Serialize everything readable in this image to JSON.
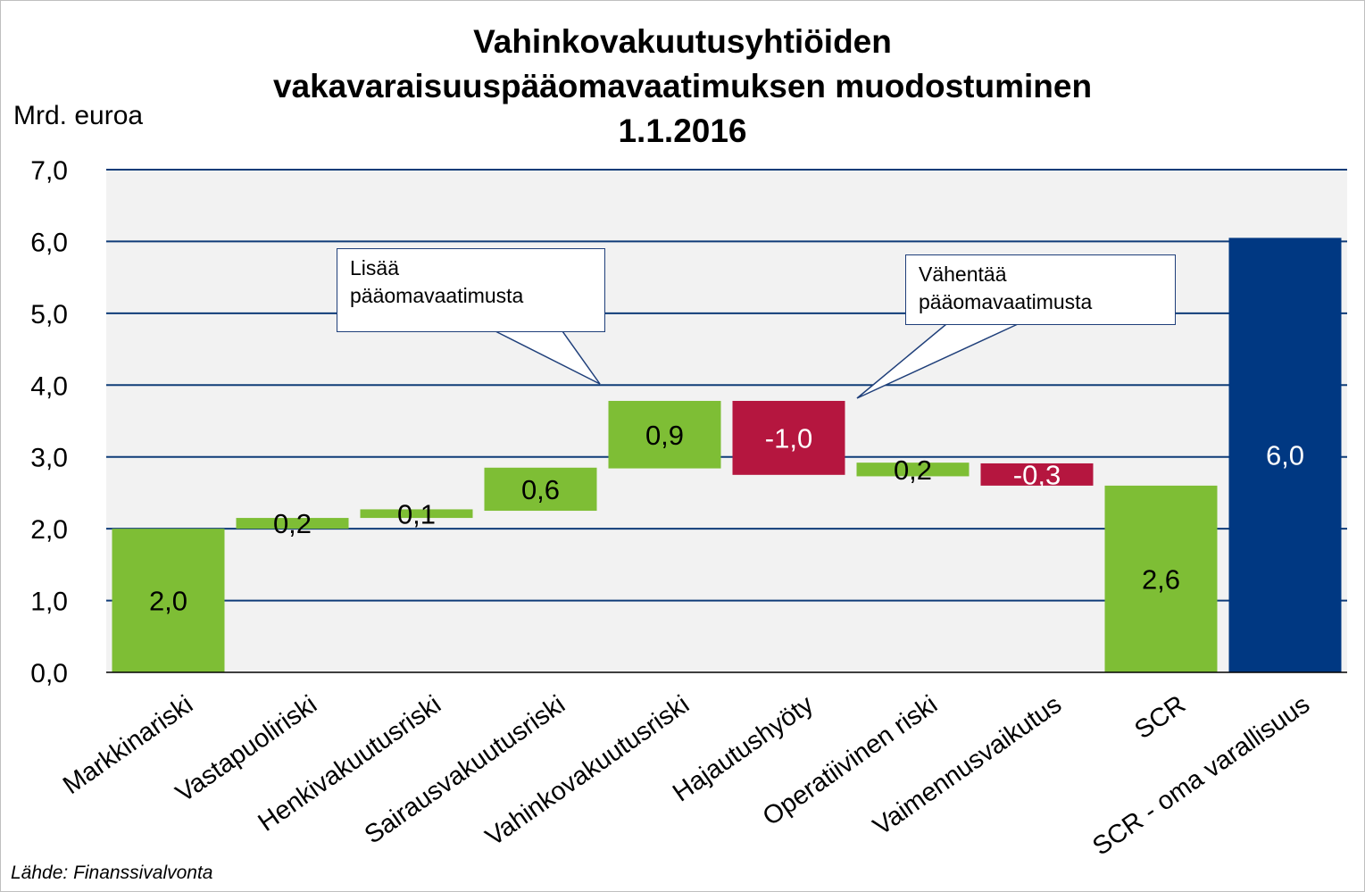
{
  "title_lines": [
    "Vahinkovakuutusyhtiöiden",
    "vakavaraisuuspääomavaatimuksen muodostuminen",
    "1.1.2016"
  ],
  "source": "Lähde: Finanssivalvonta",
  "colors": {
    "increase": "#7ebe35",
    "decrease": "#b5163f",
    "total_navy": "#003882",
    "gridline": "#0f3c78",
    "plot_bg": "#f2f2f2"
  },
  "callouts": {
    "increase": [
      "Lisää",
      "pääomavaatimusta"
    ],
    "decrease": [
      "Vähentää",
      "pääomavaatimusta"
    ]
  },
  "chart_data": {
    "type": "bar",
    "subtype": "waterfall",
    "title": "Vahinkovakuutusyhtiöiden vakavaraisuuspääomavaatimuksen muodostuminen 1.1.2016",
    "ylabel": "Mrd. euroa",
    "ylim": [
      0,
      7
    ],
    "yticks": [
      "0,0",
      "1,0",
      "2,0",
      "3,0",
      "4,0",
      "5,0",
      "6,0",
      "7,0"
    ],
    "grid": true,
    "categories": [
      "Markkinariski",
      "Vastapuoliriski",
      "Henkivakuutusriski",
      "Sairausvakuutusriski",
      "Vahinkovakuutusriski",
      "Hajautushyöty",
      "Operatiivinen riski",
      "Vaimennusvaikutus",
      "SCR",
      "SCR - oma varallisuus"
    ],
    "bars": [
      {
        "label": "2,0",
        "bottom": 0.0,
        "top": 2.0,
        "kind": "increase",
        "label_color": "#000000"
      },
      {
        "label": "0,2",
        "bottom": 2.0,
        "top": 2.15,
        "kind": "increase",
        "label_color": "#000000"
      },
      {
        "label": "0,1",
        "bottom": 2.15,
        "top": 2.27,
        "kind": "increase",
        "label_color": "#000000"
      },
      {
        "label": "0,6",
        "bottom": 2.25,
        "top": 2.85,
        "kind": "increase",
        "label_color": "#000000"
      },
      {
        "label": "0,9",
        "bottom": 2.84,
        "top": 3.78,
        "kind": "increase",
        "label_color": "#000000"
      },
      {
        "label": "-1,0",
        "bottom": 2.75,
        "top": 3.78,
        "kind": "decrease",
        "label_color": "#ffffff"
      },
      {
        "label": "0,2",
        "bottom": 2.73,
        "top": 2.92,
        "kind": "increase",
        "label_color": "#000000"
      },
      {
        "label": "-0,3",
        "bottom": 2.6,
        "top": 2.91,
        "kind": "decrease",
        "label_color": "#ffffff"
      },
      {
        "label": "2,6",
        "bottom": 0.0,
        "top": 2.6,
        "kind": "increase",
        "label_color": "#000000"
      },
      {
        "label": "6,0",
        "bottom": 0.0,
        "top": 6.05,
        "kind": "total_navy",
        "label_color": "#ffffff"
      }
    ]
  }
}
